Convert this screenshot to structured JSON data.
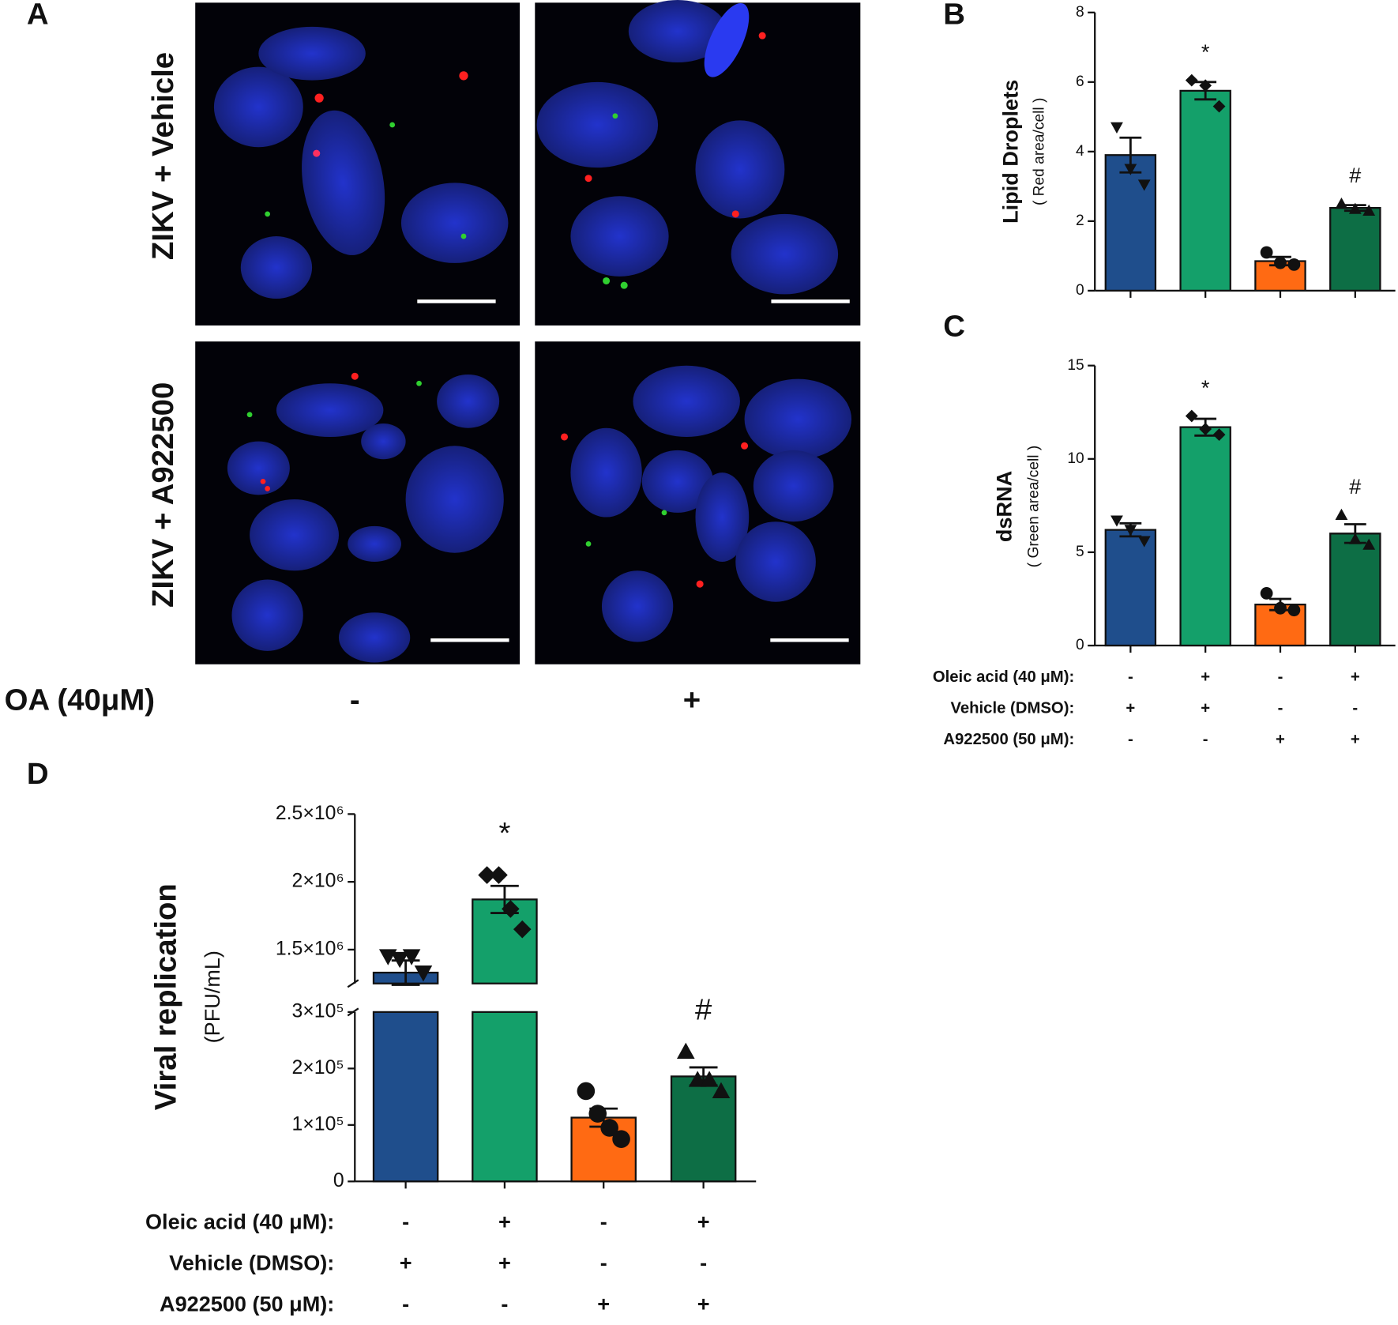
{
  "microscopy": {
    "panel": "A",
    "row_labels": [
      "ZIKV + Vehicle",
      "ZIKV + A922500"
    ],
    "column_factor": "OA (40μM)",
    "column_values": [
      "-",
      "+"
    ]
  },
  "chart_data": [
    {
      "type": "bar",
      "panel": "B",
      "ylabel": "Lipid Droplets",
      "ylabel_sub": "( Red area/cell )",
      "ylim": [
        0,
        8
      ],
      "yticks": [
        0,
        2,
        4,
        6,
        8
      ],
      "values": [
        3.9,
        5.75,
        0.85,
        2.38
      ],
      "errors": [
        0.5,
        0.25,
        0.12,
        0.08
      ],
      "points": [
        [
          4.7,
          3.5,
          3.05
        ],
        [
          6.05,
          5.9,
          5.3
        ],
        [
          1.1,
          0.8,
          0.75
        ],
        [
          2.5,
          2.35,
          2.3
        ]
      ],
      "markers": [
        "triangle-down",
        "diamond",
        "circle",
        "triangle-up"
      ],
      "colors": [
        "#1f4e8c",
        "#14a06a",
        "#ff6a13",
        "#0d6e45"
      ],
      "annotations": [
        null,
        "*",
        null,
        "#"
      ]
    },
    {
      "type": "bar",
      "panel": "C",
      "ylabel": "dsRNA",
      "ylabel_sub": "( Green area/cell )",
      "ylim": [
        0,
        15
      ],
      "yticks": [
        0,
        5,
        10,
        15
      ],
      "values": [
        6.2,
        11.7,
        2.2,
        6.0
      ],
      "errors": [
        0.35,
        0.45,
        0.3,
        0.5
      ],
      "points": [
        [
          6.7,
          6.2,
          5.6
        ],
        [
          12.3,
          11.6,
          11.3
        ],
        [
          2.8,
          2.0,
          1.9
        ],
        [
          7.0,
          5.7,
          5.4
        ]
      ],
      "markers": [
        "triangle-down",
        "diamond",
        "circle",
        "triangle-up"
      ],
      "colors": [
        "#1f4e8c",
        "#14a06a",
        "#ff6a13",
        "#0d6e45"
      ],
      "annotations": [
        null,
        "*",
        null,
        "#"
      ],
      "treatments": [
        {
          "label": "Oleic acid (40 μM):",
          "values": [
            "-",
            "+",
            "-",
            "+"
          ]
        },
        {
          "label": "Vehicle (DMSO):",
          "values": [
            "+",
            "+",
            "-",
            "-"
          ]
        },
        {
          "label": "A922500 (50 μM):",
          "values": [
            "-",
            "-",
            "+",
            "+"
          ]
        }
      ]
    },
    {
      "type": "bar",
      "panel": "D",
      "ylabel": "Viral replication",
      "ylabel_sub": "(PFU/mL)",
      "ylim": [
        0,
        2500000
      ],
      "axis_break": [
        300000,
        1250000
      ],
      "yticks": [
        0,
        {
          "value": 100000,
          "label": "1×10⁵"
        },
        {
          "value": 200000,
          "label": "2×10⁵"
        },
        {
          "value": 300000,
          "label": "3×10⁵"
        },
        {
          "value": 1500000,
          "label": "1.5×10⁶"
        },
        {
          "value": 2000000,
          "label": "2×10⁶"
        },
        {
          "value": 2500000,
          "label": "2.5×10⁶"
        }
      ],
      "values": [
        1330000,
        1870000,
        113000,
        186000
      ],
      "errors": [
        90000,
        100000,
        16000,
        16000
      ],
      "points": [
        [
          1450000,
          1430000,
          1450000,
          1330000
        ],
        [
          2050000,
          2050000,
          1800000,
          1650000
        ],
        [
          160000,
          120000,
          95000,
          75000
        ],
        [
          230000,
          180000,
          180000,
          160000
        ]
      ],
      "markers": [
        "triangle-down",
        "diamond",
        "circle",
        "triangle-up"
      ],
      "colors": [
        "#1f4e8c",
        "#14a06a",
        "#ff6a13",
        "#0d6e45"
      ],
      "annotations": [
        null,
        "*",
        null,
        "#"
      ],
      "treatments": [
        {
          "label": "Oleic acid (40 μM):",
          "values": [
            "-",
            "+",
            "-",
            "+"
          ]
        },
        {
          "label": "Vehicle (DMSO):",
          "values": [
            "+",
            "+",
            "-",
            "-"
          ]
        },
        {
          "label": "A922500 (50 μM):",
          "values": [
            "-",
            "-",
            "+",
            "+"
          ]
        }
      ]
    }
  ]
}
